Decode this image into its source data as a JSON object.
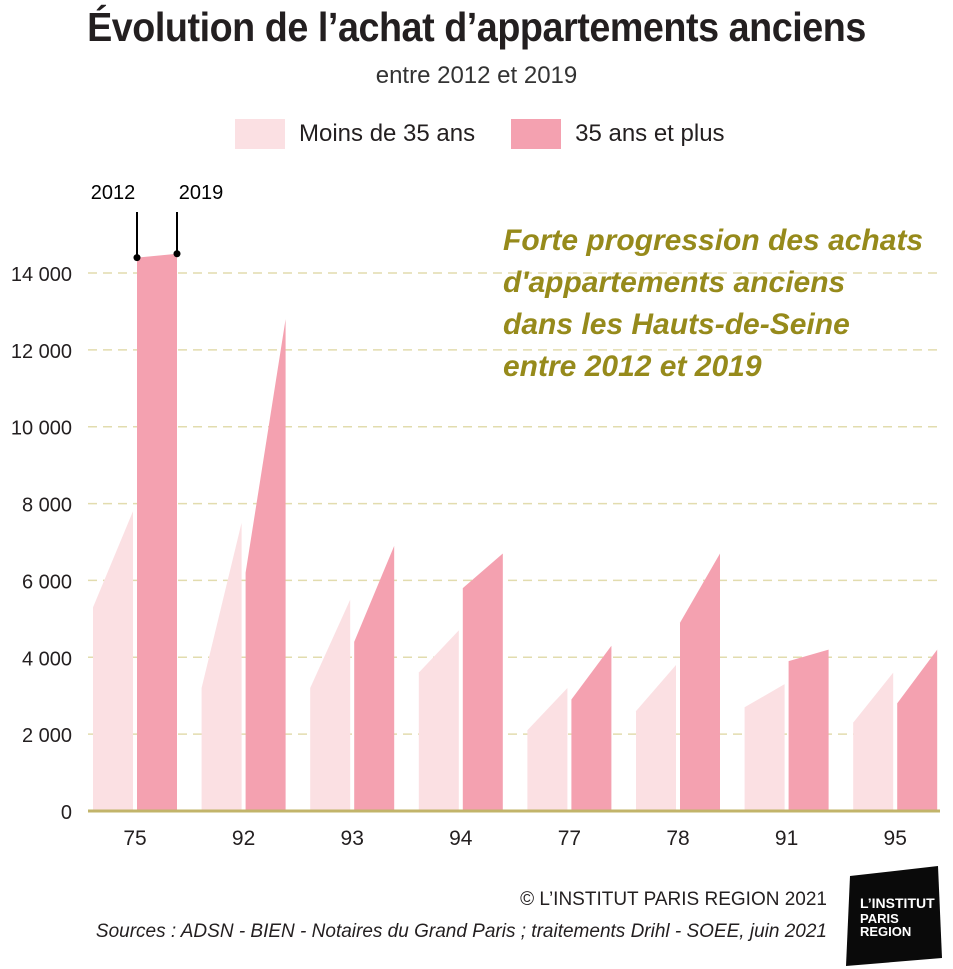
{
  "header": {
    "title": "Évolution de l’achat d’appartements anciens",
    "subtitle": "entre 2012 et 2019"
  },
  "annotation": {
    "lines": [
      "Forte progression des achats",
      "d'appartements anciens",
      "dans les Hauts-de-Seine",
      "entre 2012 et 2019"
    ],
    "color": "#968a1b"
  },
  "year_markers": {
    "start": "2012",
    "end": "2019"
  },
  "footer": {
    "copyright": "© L’INSTITUT PARIS REGION 2021",
    "sources": "Sources :  ADSN - BIEN - Notaires du Grand Paris ; traitements Drihl - SOEE, juin 2021"
  },
  "logo": {
    "line1": "L’INSTITUT",
    "line2": "PARIS",
    "line3": "REGION"
  },
  "chart_data": {
    "type": "area",
    "categories": [
      "75",
      "92",
      "93",
      "94",
      "77",
      "78",
      "91",
      "95"
    ],
    "x_periods": [
      "2012",
      "2019"
    ],
    "ylim": [
      0,
      14000
    ],
    "yticks": [
      0,
      2000,
      4000,
      6000,
      8000,
      10000,
      12000,
      14000
    ],
    "ytick_labels": [
      "0",
      "2 000",
      "4 000",
      "6 000",
      "8 000",
      "10 000",
      "12 000",
      "14 000"
    ],
    "grid": true,
    "legend": "top",
    "series": [
      {
        "name": "Moins de 35 ans",
        "color": "#fbe0e3",
        "values": [
          [
            5300,
            7800
          ],
          [
            3200,
            7500
          ],
          [
            3200,
            5500
          ],
          [
            3600,
            4700
          ],
          [
            2100,
            3200
          ],
          [
            2600,
            3800
          ],
          [
            2700,
            3300
          ],
          [
            2300,
            3600
          ]
        ]
      },
      {
        "name": "35 ans et plus",
        "color": "#f4a1b0",
        "values": [
          [
            14400,
            14500
          ],
          [
            6200,
            12800
          ],
          [
            4400,
            6900
          ],
          [
            5800,
            6700
          ],
          [
            2900,
            4300
          ],
          [
            4900,
            6700
          ],
          [
            3900,
            4200
          ],
          [
            2800,
            4200
          ]
        ]
      }
    ]
  }
}
